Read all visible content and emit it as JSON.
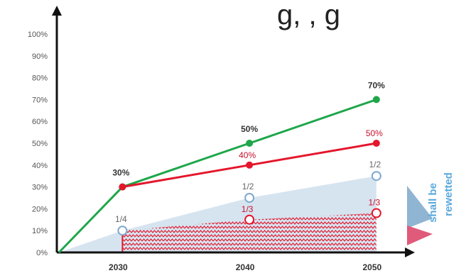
{
  "header_fragment": "g, , g",
  "colors": {
    "green": "#1ea64a",
    "red": "#e4162b",
    "blue_area": "#d6e4f0",
    "blue_marker": "#7fa9cf",
    "hatch_red": "#e4162b",
    "side_text": "#5aa8dc",
    "pink_triangle": "#e05a7a"
  },
  "chart_data": {
    "type": "line",
    "x": [
      2025,
      2030,
      2040,
      2050
    ],
    "x_ticks": [
      "2030",
      "2040",
      "2050"
    ],
    "y_ticks": [
      "0%",
      "10%",
      "20%",
      "30%",
      "40%",
      "50%",
      "60%",
      "70%",
      "80%",
      "90%",
      "100%"
    ],
    "ylim": [
      0,
      100
    ],
    "series": [
      {
        "key": "green",
        "x": [
          2025,
          2030,
          2040,
          2050
        ],
        "values": [
          0,
          30,
          50,
          70
        ],
        "labels": [
          "",
          "30%",
          "50%",
          "70%"
        ]
      },
      {
        "key": "red",
        "x": [
          2030,
          2040,
          2050
        ],
        "values": [
          30,
          40,
          50
        ],
        "labels": [
          "",
          "40%",
          "50%"
        ]
      },
      {
        "key": "blue_area",
        "x": [
          2025,
          2030,
          2040,
          2050
        ],
        "values": [
          0,
          10,
          25,
          35
        ],
        "labels": [
          "",
          "1/4",
          "1/2",
          "1/2"
        ]
      },
      {
        "key": "red_hatched_area",
        "x": [
          2030,
          2040,
          2050
        ],
        "values": [
          10,
          15,
          18
        ],
        "labels": [
          "",
          "1/3",
          "1/3"
        ]
      }
    ],
    "side_label": [
      "shall be",
      "rewetted"
    ]
  }
}
